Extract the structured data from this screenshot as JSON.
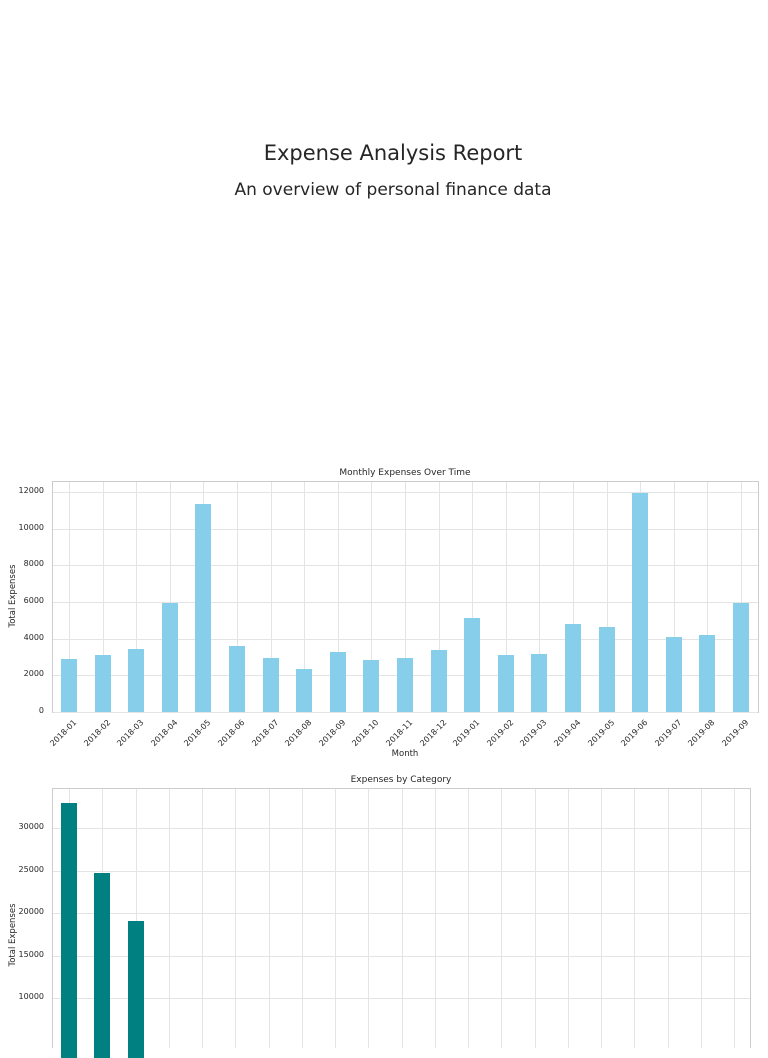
{
  "report": {
    "title": "Expense Analysis Report",
    "subtitle": "An overview of personal finance data"
  },
  "chart_data": [
    {
      "type": "bar",
      "title": "Monthly Expenses Over Time",
      "xlabel": "Month",
      "ylabel": "Total Expenses",
      "ylim": [
        0,
        12600
      ],
      "yticks": [
        0,
        2000,
        4000,
        6000,
        8000,
        10000,
        12000
      ],
      "grid": true,
      "bar_color": "#87ceeb",
      "categories": [
        "2018-01",
        "2018-02",
        "2018-03",
        "2018-04",
        "2018-05",
        "2018-06",
        "2018-07",
        "2018-08",
        "2018-09",
        "2018-10",
        "2018-11",
        "2018-12",
        "2019-01",
        "2019-02",
        "2019-03",
        "2019-04",
        "2019-05",
        "2019-06",
        "2019-07",
        "2019-08",
        "2019-09"
      ],
      "values": [
        2875,
        3110,
        3420,
        5970,
        11370,
        3620,
        2930,
        2330,
        3260,
        2820,
        2930,
        3370,
        5120,
        3100,
        3190,
        4800,
        4620,
        11950,
        4080,
        4220,
        5970
      ]
    },
    {
      "type": "bar",
      "title": "Expenses by Category",
      "xlabel": "",
      "ylabel": "Total Expenses",
      "ylim_visible": [
        7000,
        34500
      ],
      "yticks": [
        10000,
        15000,
        20000,
        25000,
        30000
      ],
      "grid": true,
      "bar_color": "#008080",
      "category_count": 21,
      "values_visible": [
        33000,
        24700,
        19100
      ]
    }
  ]
}
